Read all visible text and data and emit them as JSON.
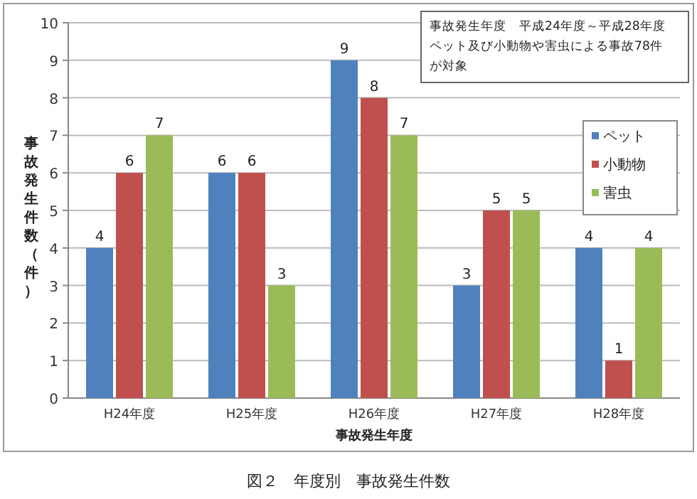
{
  "chart_data": {
    "type": "bar",
    "xlabel": "事故発生年度",
    "ylabel": "事故発生件数（件）",
    "categories": [
      "H24年度",
      "H25年度",
      "H26年度",
      "H27年度",
      "H28年度"
    ],
    "series": [
      {
        "name": "ペット",
        "color": "#4f81bd",
        "values": [
          4,
          6,
          9,
          3,
          4
        ]
      },
      {
        "name": "小動物",
        "color": "#c0504d",
        "values": [
          6,
          6,
          8,
          5,
          1
        ]
      },
      {
        "name": "害虫",
        "color": "#9bbb59",
        "values": [
          7,
          3,
          7,
          5,
          4
        ]
      }
    ],
    "ylim": [
      0,
      10
    ],
    "yticks": [
      0,
      1,
      2,
      3,
      4,
      5,
      6,
      7,
      8,
      9,
      10
    ],
    "grid": "y",
    "legend": "right",
    "data_labels": true,
    "annotations": [
      "事故発生年度　平成24年度～平成28年度ペット及び小動物や害虫による事故78件が対象",
      "図２　年度別　事故発生件数"
    ]
  }
}
